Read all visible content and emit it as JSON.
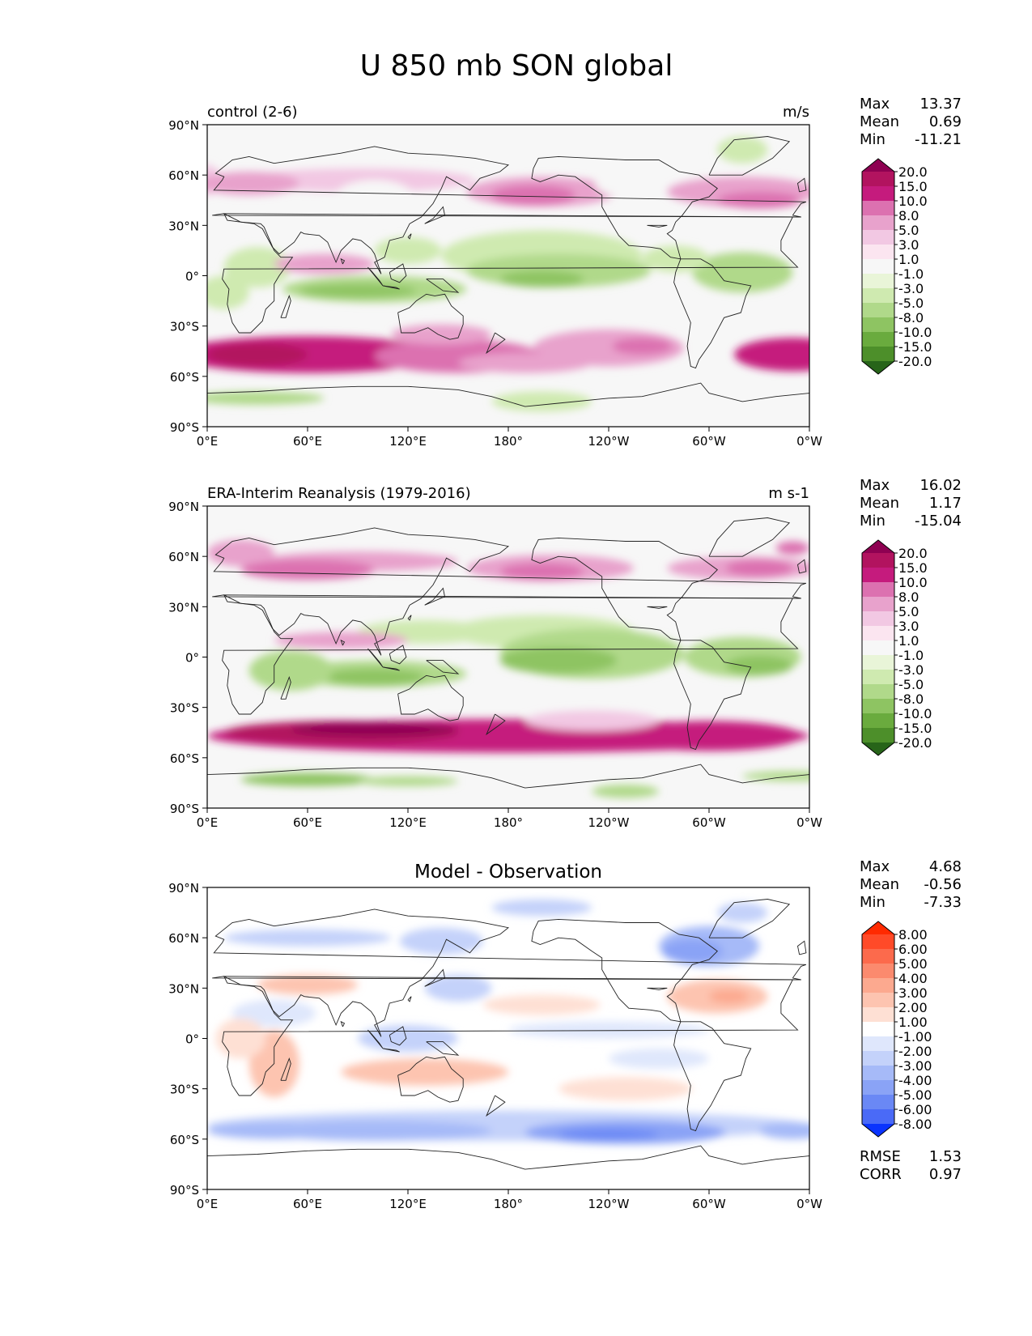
{
  "title": "U 850 mb SON global",
  "lat_ticks": [
    "90°N",
    "60°N",
    "30°N",
    "0°",
    "30°S",
    "60°S",
    "90°S"
  ],
  "lon_ticks": [
    "0°E",
    "60°E",
    "120°E",
    "180°",
    "120°W",
    "60°W",
    "0°W"
  ],
  "panels": [
    {
      "left_title": "control (2-6)",
      "center_title": "",
      "units": "m/s",
      "stats": [
        {
          "label": "Max",
          "value": "13.37"
        },
        {
          "label": "Mean",
          "value": "0.69"
        },
        {
          "label": "Min",
          "value": "-11.21"
        }
      ],
      "extra_stats": [],
      "colorbar": {
        "levels": [
          "20.0",
          "15.0",
          "10.0",
          "8.0",
          "5.0",
          "3.0",
          "1.0",
          "-1.0",
          "-3.0",
          "-5.0",
          "-8.0",
          "-10.0",
          "-15.0",
          "-20.0"
        ],
        "colors": [
          "#8e0152",
          "#b2135f",
          "#c51b7d",
          "#dc71b0",
          "#e8a2cc",
          "#f2c8e3",
          "#fbe5f0",
          "#f7f7f7",
          "#e9f5d8",
          "#cfeab0",
          "#b0d98a",
          "#8ec462",
          "#6aab3e",
          "#4d8f2a",
          "#276419"
        ]
      }
    },
    {
      "left_title": "ERA-Interim Reanalysis (1979-2016)",
      "center_title": "",
      "units": "m s-1",
      "stats": [
        {
          "label": "Max",
          "value": "16.02"
        },
        {
          "label": "Mean",
          "value": "1.17"
        },
        {
          "label": "Min",
          "value": "-15.04"
        }
      ],
      "extra_stats": [],
      "colorbar": {
        "levels": [
          "20.0",
          "15.0",
          "10.0",
          "8.0",
          "5.0",
          "3.0",
          "1.0",
          "-1.0",
          "-3.0",
          "-5.0",
          "-8.0",
          "-10.0",
          "-15.0",
          "-20.0"
        ],
        "colors": [
          "#8e0152",
          "#b2135f",
          "#c51b7d",
          "#dc71b0",
          "#e8a2cc",
          "#f2c8e3",
          "#fbe5f0",
          "#f7f7f7",
          "#e9f5d8",
          "#cfeab0",
          "#b0d98a",
          "#8ec462",
          "#6aab3e",
          "#4d8f2a",
          "#276419"
        ]
      }
    },
    {
      "left_title": "",
      "center_title": "Model - Observation",
      "units": "",
      "stats": [
        {
          "label": "Max",
          "value": "4.68"
        },
        {
          "label": "Mean",
          "value": "-0.56"
        },
        {
          "label": "Min",
          "value": "-7.33"
        }
      ],
      "extra_stats": [
        {
          "label": "RMSE",
          "value": "1.53"
        },
        {
          "label": "CORR",
          "value": "0.97"
        }
      ],
      "colorbar": {
        "levels": [
          "8.00",
          "6.00",
          "5.00",
          "4.00",
          "3.00",
          "2.00",
          "1.00",
          "-1.00",
          "-2.00",
          "-3.00",
          "-4.00",
          "-5.00",
          "-6.00",
          "-8.00"
        ],
        "colors": [
          "#ff2a00",
          "#ff4a28",
          "#fc6a4c",
          "#fb8a6e",
          "#fca98f",
          "#fdc4b0",
          "#fee0d4",
          "#ffffff",
          "#dfe7fc",
          "#c4d2fa",
          "#a6baf8",
          "#8aa3f6",
          "#6a88f5",
          "#4a6af7",
          "#0a33fe"
        ]
      }
    }
  ],
  "chart_data": [
    {
      "type": "heatmap",
      "title": "control (2-6)",
      "units": "m/s",
      "variable": "U 850 mb SON global",
      "x_ticks": [
        "0°E",
        "60°E",
        "120°E",
        "180°",
        "120°W",
        "60°W",
        "0°W"
      ],
      "y_ticks": [
        "90°N",
        "60°N",
        "30°N",
        "0°",
        "30°S",
        "60°S",
        "90°S"
      ],
      "xlim": [
        0,
        360
      ],
      "ylim": [
        -90,
        90
      ],
      "max": 13.37,
      "mean": 0.69,
      "min": -11.21,
      "levels": [
        -20,
        -15,
        -10,
        -8,
        -5,
        -3,
        -1,
        1,
        3,
        5,
        8,
        10,
        15,
        20
      ]
    },
    {
      "type": "heatmap",
      "title": "ERA-Interim Reanalysis (1979-2016)",
      "units": "m s-1",
      "variable": "U 850 mb SON global",
      "x_ticks": [
        "0°E",
        "60°E",
        "120°E",
        "180°",
        "120°W",
        "60°W",
        "0°W"
      ],
      "y_ticks": [
        "90°N",
        "60°N",
        "30°N",
        "0°",
        "30°S",
        "60°S",
        "90°S"
      ],
      "xlim": [
        0,
        360
      ],
      "ylim": [
        -90,
        90
      ],
      "max": 16.02,
      "mean": 1.17,
      "min": -15.04,
      "levels": [
        -20,
        -15,
        -10,
        -8,
        -5,
        -3,
        -1,
        1,
        3,
        5,
        8,
        10,
        15,
        20
      ]
    },
    {
      "type": "heatmap",
      "title": "Model - Observation",
      "variable": "U 850 mb SON global",
      "x_ticks": [
        "0°E",
        "60°E",
        "120°E",
        "180°",
        "120°W",
        "60°W",
        "0°W"
      ],
      "y_ticks": [
        "90°N",
        "60°N",
        "30°N",
        "0°",
        "30°S",
        "60°S",
        "90°S"
      ],
      "xlim": [
        0,
        360
      ],
      "ylim": [
        -90,
        90
      ],
      "max": 4.68,
      "mean": -0.56,
      "min": -7.33,
      "rmse": 1.53,
      "corr": 0.97,
      "levels": [
        -8,
        -6,
        -5,
        -4,
        -3,
        -2,
        -1,
        1,
        2,
        3,
        4,
        5,
        6,
        8
      ]
    }
  ]
}
